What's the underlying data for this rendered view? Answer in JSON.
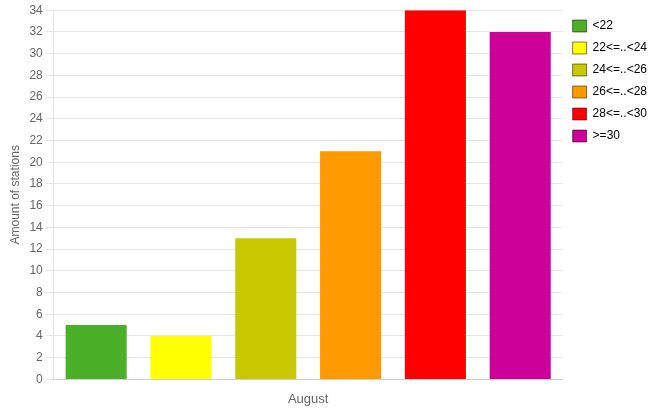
{
  "chart_data": {
    "type": "bar",
    "categories": [
      "<22",
      "22<=..<24",
      "24<=..<26",
      "26<=..<28",
      "28<=..<30",
      ">=30"
    ],
    "values": [
      5,
      4,
      13,
      21,
      34,
      32
    ],
    "colors": [
      "#4caf28",
      "#ffff00",
      "#c8c800",
      "#ff9900",
      "#ff0000",
      "#cc0099"
    ],
    "xlabel": "August",
    "ylabel": "Amount of stations",
    "ylim": [
      0,
      34
    ],
    "yticks": [
      0,
      2,
      4,
      6,
      8,
      10,
      12,
      14,
      16,
      18,
      20,
      22,
      24,
      26,
      28,
      30,
      32,
      34
    ],
    "grid": true,
    "legend": "upper right",
    "tick_labels": "y"
  }
}
